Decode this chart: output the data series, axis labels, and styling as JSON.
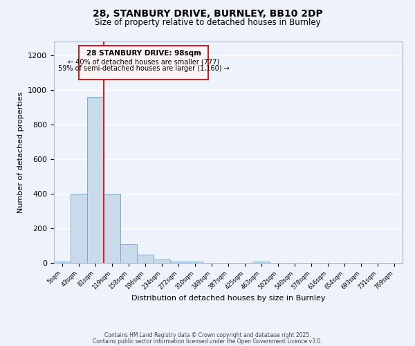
{
  "title_line1": "28, STANBURY DRIVE, BURNLEY, BB10 2DP",
  "title_line2": "Size of property relative to detached houses in Burnley",
  "xlabel": "Distribution of detached houses by size in Burnley",
  "ylabel": "Number of detached properties",
  "bar_color": "#c9daea",
  "bar_edge_color": "#7aaac8",
  "background_color": "#eef2fa",
  "grid_color": "#ffffff",
  "annotation_border_color": "#cc2222",
  "annotation_face_color": "#fdf5f5",
  "vline_color": "#cc2222",
  "vline_x": 2.5,
  "annotation_title": "28 STANBURY DRIVE: 98sqm",
  "annotation_line1": "← 40% of detached houses are smaller (777)",
  "annotation_line2": "59% of semi-detached houses are larger (1,160) →",
  "bin_labels": [
    "5sqm",
    "43sqm",
    "81sqm",
    "119sqm",
    "158sqm",
    "196sqm",
    "234sqm",
    "272sqm",
    "310sqm",
    "349sqm",
    "387sqm",
    "425sqm",
    "463sqm",
    "502sqm",
    "540sqm",
    "578sqm",
    "616sqm",
    "654sqm",
    "693sqm",
    "731sqm",
    "769sqm"
  ],
  "bar_heights": [
    10,
    400,
    960,
    400,
    110,
    50,
    20,
    10,
    10,
    0,
    0,
    0,
    10,
    0,
    0,
    0,
    0,
    0,
    0,
    0,
    0
  ],
  "ylim": [
    0,
    1280
  ],
  "yticks": [
    0,
    200,
    400,
    600,
    800,
    1000,
    1200
  ],
  "footer_line1": "Contains HM Land Registry data © Crown copyright and database right 2025.",
  "footer_line2": "Contains public sector information licensed under the Open Government Licence v3.0."
}
